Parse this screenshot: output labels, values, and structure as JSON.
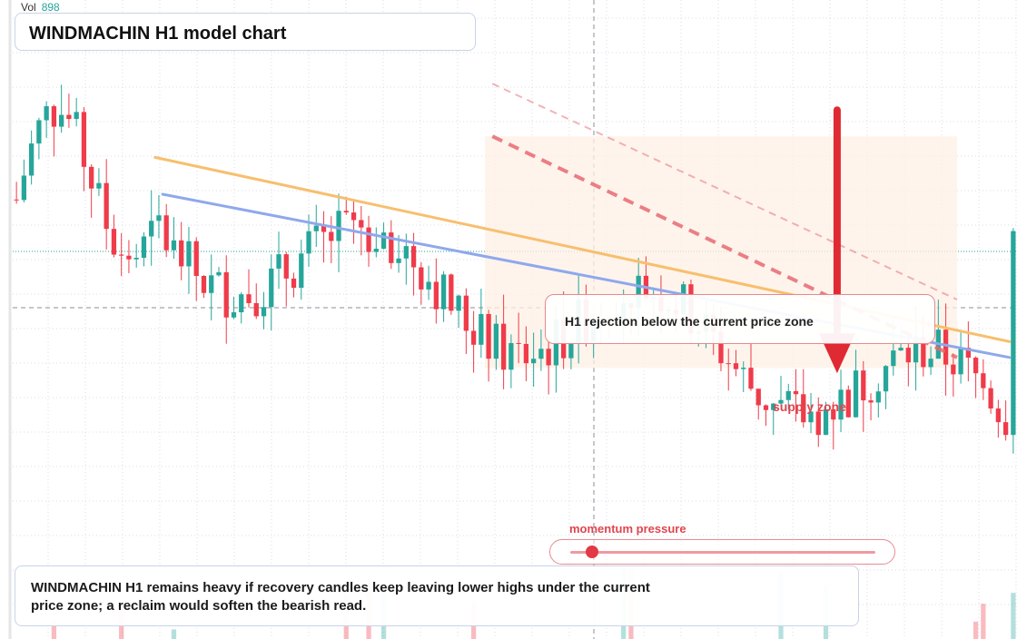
{
  "header": {
    "vol_label": "Vol",
    "vol_value": "898",
    "title": "WINDMACHIN H1 model chart"
  },
  "annotations": {
    "callout": "H1 rejection below the current price zone",
    "supply_label": "supply zone",
    "momentum_label": "momentum pressure",
    "momentum_level": 0.07,
    "summary": "WINDMACHIN H1 remains heavy if recovery candles keep leaving lower highs under the current price zone; a reclaim would soften the bearish read."
  },
  "colors": {
    "up": "#26a69a",
    "down": "#ef3b4a",
    "support_line": "#8fa8ec",
    "resistance_line": "#f7bf6e",
    "channel_dash": "#e86a72",
    "arrow": "#df2a33",
    "zone": "#fdf0e6"
  },
  "chart_data": {
    "type": "candlestick",
    "title": "WINDMACHIN H1 model chart",
    "y_range": [
      0,
      100
    ],
    "x_range": [
      0,
      134
    ],
    "current_price_level": 63,
    "candle_count": 134,
    "trend_start": 69,
    "trend_end": 28,
    "trendlines": [
      {
        "name": "support",
        "from": [
          20,
          70
        ],
        "to": [
          133,
          39
        ]
      },
      {
        "name": "resistance",
        "from": [
          19,
          77
        ],
        "to": [
          133,
          42
        ]
      }
    ],
    "channel": [
      {
        "style": "dashed-strong",
        "from": [
          64,
          81
        ],
        "to": [
          126,
          39
        ]
      },
      {
        "style": "dashed-light",
        "from": [
          64,
          91
        ],
        "to": [
          126,
          50
        ]
      }
    ],
    "supply_zone": {
      "x": [
        63,
        126
      ],
      "y": [
        37,
        81
      ]
    },
    "arrow": {
      "x": 110,
      "from_y": 86,
      "to_y": 36
    }
  }
}
